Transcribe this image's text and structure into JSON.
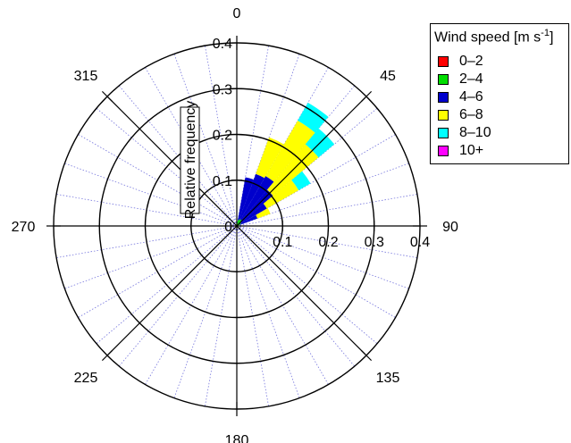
{
  "chart_data": {
    "type": "polar-bar",
    "title": "",
    "radial_axis_label": "Relative frequency",
    "radial_ticks": [
      "0",
      "0.1",
      "0.2",
      "0.3",
      "0.4"
    ],
    "radial_range": [
      0,
      0.4
    ],
    "angle_labels": [
      "0",
      "45",
      "90",
      "135",
      "180",
      "225",
      "270",
      "315"
    ],
    "grid": true,
    "legend_placement": "top-right",
    "legend": {
      "title_text": "Wind speed [m s",
      "title_sup": "-1",
      "title_close": "]"
    },
    "bin_width_deg": 10,
    "directions_deg": [
      15,
      25,
      35,
      45,
      55,
      65
    ],
    "series": [
      {
        "name": "0–2",
        "color": "#ff0000",
        "values": [
          0.003,
          0.004,
          0.004,
          0.003,
          0.003,
          0.002
        ]
      },
      {
        "name": "2–4",
        "color": "#00dd00",
        "values": [
          0.01,
          0.012,
          0.012,
          0.01,
          0.008,
          0.006
        ]
      },
      {
        "name": "4–6",
        "color": "#0000cc",
        "values": [
          0.095,
          0.105,
          0.11,
          0.09,
          0.065,
          0.04
        ]
      },
      {
        "name": "6–8",
        "color": "#ffff00",
        "values": [
          0.0,
          0.085,
          0.14,
          0.13,
          0.08,
          0.03
        ]
      },
      {
        "name": "8–10",
        "color": "#00ffff",
        "values": [
          0.0,
          0.0,
          0.045,
          0.045,
          0.03,
          0.0
        ]
      },
      {
        "name": "10+",
        "color": "#ff00ff",
        "values": [
          0,
          0,
          0,
          0,
          0,
          0
        ]
      }
    ]
  }
}
